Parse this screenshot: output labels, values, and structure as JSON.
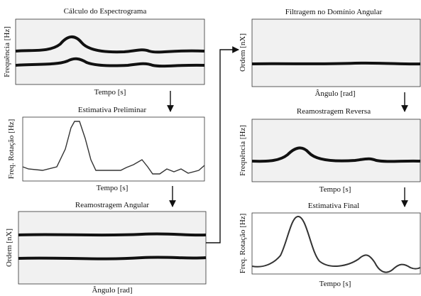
{
  "panels": [
    {
      "title": "Cálculo do Espectrograma",
      "xlabel": "Tempo [s]",
      "ylabel": "Frequência [Hz]"
    },
    {
      "title": "Estimativa Preliminar",
      "xlabel": "Tempo [s]",
      "ylabel": "Freq. Rotação [Hz]"
    },
    {
      "title": "Reamostragem Angular",
      "xlabel": "Ângulo [rad]",
      "ylabel": "Ordem [nX]"
    },
    {
      "title": "Filtragem no Domínio Angular",
      "xlabel": "Ângulo [rad]",
      "ylabel": "Ordem [nX]"
    },
    {
      "title": "Reamostragem Reversa",
      "xlabel": "Tempo [s]",
      "ylabel": "Frequência [Hz]"
    },
    {
      "title": "Estimativa Final",
      "xlabel": "Tempo [s]",
      "ylabel": "Freq. Rotação [Hz]"
    }
  ]
}
